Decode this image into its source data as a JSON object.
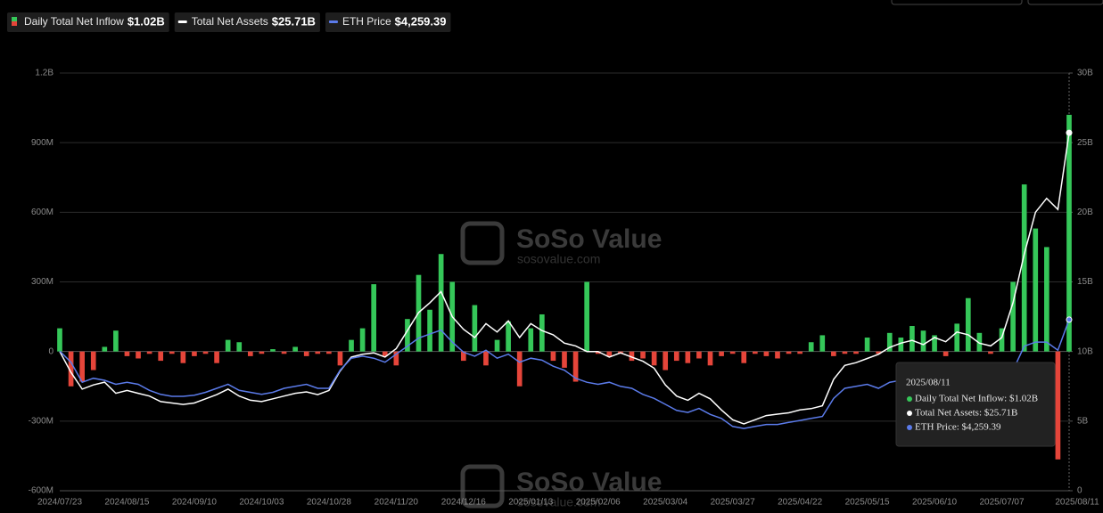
{
  "chart_data": {
    "type": "bar-line",
    "watermark": {
      "brand": "SoSo Value",
      "url": "sosovalue.com"
    },
    "categories": [
      "2024/07/23",
      null,
      null,
      null,
      null,
      null,
      "2024/08/15",
      null,
      null,
      null,
      null,
      null,
      "2024/09/10",
      null,
      null,
      null,
      null,
      null,
      "2024/10/03",
      null,
      null,
      null,
      null,
      null,
      "2024/10/28",
      null,
      null,
      null,
      null,
      null,
      "2024/11/20",
      null,
      null,
      null,
      null,
      null,
      "2024/12/16",
      null,
      null,
      null,
      null,
      null,
      "2025/01/13",
      null,
      null,
      null,
      null,
      null,
      "2025/02/06",
      null,
      null,
      null,
      null,
      null,
      "2025/03/04",
      null,
      null,
      null,
      null,
      null,
      "2025/03/27",
      null,
      null,
      null,
      null,
      null,
      "2025/04/22",
      null,
      null,
      null,
      null,
      null,
      "2025/05/15",
      null,
      null,
      null,
      null,
      null,
      "2025/06/10",
      null,
      null,
      null,
      null,
      null,
      "2025/07/07",
      null,
      null,
      null,
      null,
      null,
      "2025/08/11"
    ],
    "series": [
      {
        "name": "Daily Total Net Inflow",
        "type": "bar",
        "axis": "y",
        "color": "#35c759",
        "negative_color": "#e5453a",
        "latest_label": "$1.02B",
        "values": [
          100,
          -150,
          -130,
          -80,
          20,
          90,
          -20,
          -30,
          -10,
          -40,
          -10,
          -50,
          -20,
          -10,
          -50,
          50,
          40,
          -20,
          -10,
          10,
          -10,
          20,
          -20,
          -10,
          -10,
          -60,
          50,
          100,
          290,
          -20,
          -60,
          140,
          330,
          180,
          420,
          300,
          -40,
          200,
          -60,
          50,
          130,
          -150,
          100,
          160,
          -40,
          -70,
          -130,
          300,
          -10,
          -20,
          -10,
          -40,
          -30,
          -60,
          -80,
          -40,
          -50,
          -30,
          -60,
          -20,
          -10,
          -50,
          -10,
          -20,
          -30,
          -10,
          -10,
          40,
          70,
          -20,
          -10,
          -10,
          60,
          -10,
          80,
          60,
          110,
          90,
          70,
          -20,
          120,
          230,
          80,
          -10,
          100,
          300,
          720,
          530,
          450,
          -465,
          1020
        ]
      },
      {
        "name": "Total Net Assets",
        "type": "line",
        "axis": "y2",
        "color": "#ffffff",
        "latest_label": "$25.71B",
        "values": [
          10.0,
          8.5,
          7.3,
          7.6,
          7.8,
          7.0,
          7.2,
          7.0,
          6.8,
          6.4,
          6.3,
          6.2,
          6.3,
          6.6,
          6.9,
          7.3,
          6.8,
          6.5,
          6.4,
          6.6,
          6.8,
          7.0,
          7.1,
          6.9,
          7.2,
          8.6,
          9.6,
          9.8,
          9.9,
          9.6,
          10.2,
          11.5,
          12.8,
          13.5,
          14.3,
          12.5,
          11.6,
          11.0,
          12.0,
          11.4,
          12.2,
          11.0,
          12.0,
          11.5,
          11.2,
          10.6,
          10.4,
          10.0,
          10.0,
          9.6,
          9.9,
          9.6,
          9.3,
          8.8,
          7.6,
          6.8,
          6.5,
          7.0,
          6.6,
          5.8,
          5.1,
          4.8,
          5.1,
          5.4,
          5.5,
          5.6,
          5.8,
          5.9,
          6.1,
          8.0,
          9.0,
          9.2,
          9.5,
          9.8,
          10.3,
          10.6,
          10.8,
          10.5,
          11.0,
          10.7,
          11.4,
          11.2,
          10.6,
          10.4,
          11.0,
          13.5,
          17.0,
          20.0,
          21.0,
          20.2,
          25.71
        ]
      },
      {
        "name": "ETH Price",
        "type": "line",
        "axis": "y3",
        "color": "#5b7bea",
        "latest_label": "$4,259.39",
        "values": [
          3480,
          3200,
          2700,
          2800,
          2750,
          2650,
          2700,
          2650,
          2500,
          2400,
          2350,
          2350,
          2380,
          2450,
          2550,
          2650,
          2500,
          2450,
          2400,
          2450,
          2550,
          2600,
          2650,
          2550,
          2550,
          3000,
          3300,
          3350,
          3300,
          3200,
          3400,
          3600,
          3800,
          3900,
          4000,
          3700,
          3450,
          3350,
          3500,
          3300,
          3400,
          3200,
          3300,
          3250,
          3100,
          3000,
          2800,
          2700,
          2650,
          2700,
          2600,
          2550,
          2400,
          2300,
          2150,
          2000,
          1950,
          2050,
          1900,
          1800,
          1600,
          1550,
          1600,
          1650,
          1650,
          1700,
          1750,
          1800,
          1850,
          2300,
          2550,
          2600,
          2650,
          2550,
          2700,
          2750,
          2600,
          2500,
          2700,
          2650,
          2600,
          2500,
          2450,
          2550,
          2600,
          3000,
          3600,
          3700,
          3700,
          3500,
          4259.39
        ]
      }
    ],
    "ylim": [
      -600,
      1200
    ],
    "yticks": [
      {
        "value": -600,
        "label": "-600M"
      },
      {
        "value": -300,
        "label": "-300M"
      },
      0,
      {
        "value": 300,
        "label": "300M"
      },
      {
        "value": 600,
        "label": "600M"
      },
      {
        "value": 900,
        "label": "900M"
      },
      {
        "value": 1200,
        "label": "1.2B"
      }
    ],
    "y2lim": [
      0,
      30
    ],
    "y2ticks": [
      0,
      {
        "value": 5,
        "label": "5B"
      },
      {
        "value": 10,
        "label": "10B"
      },
      {
        "value": 15,
        "label": "15B"
      },
      {
        "value": 20,
        "label": "20B"
      },
      {
        "value": 25,
        "label": "25B"
      },
      {
        "value": 30,
        "label": "30B"
      }
    ],
    "y3lim": [
      0,
      10400
    ],
    "grid": true,
    "tooltip": {
      "date": "2025/08/11",
      "lines": [
        "Daily Total Net Inflow: $1.02B",
        "Total Net Assets: $25.71B",
        "ETH Price: $4,259.39"
      ]
    }
  }
}
